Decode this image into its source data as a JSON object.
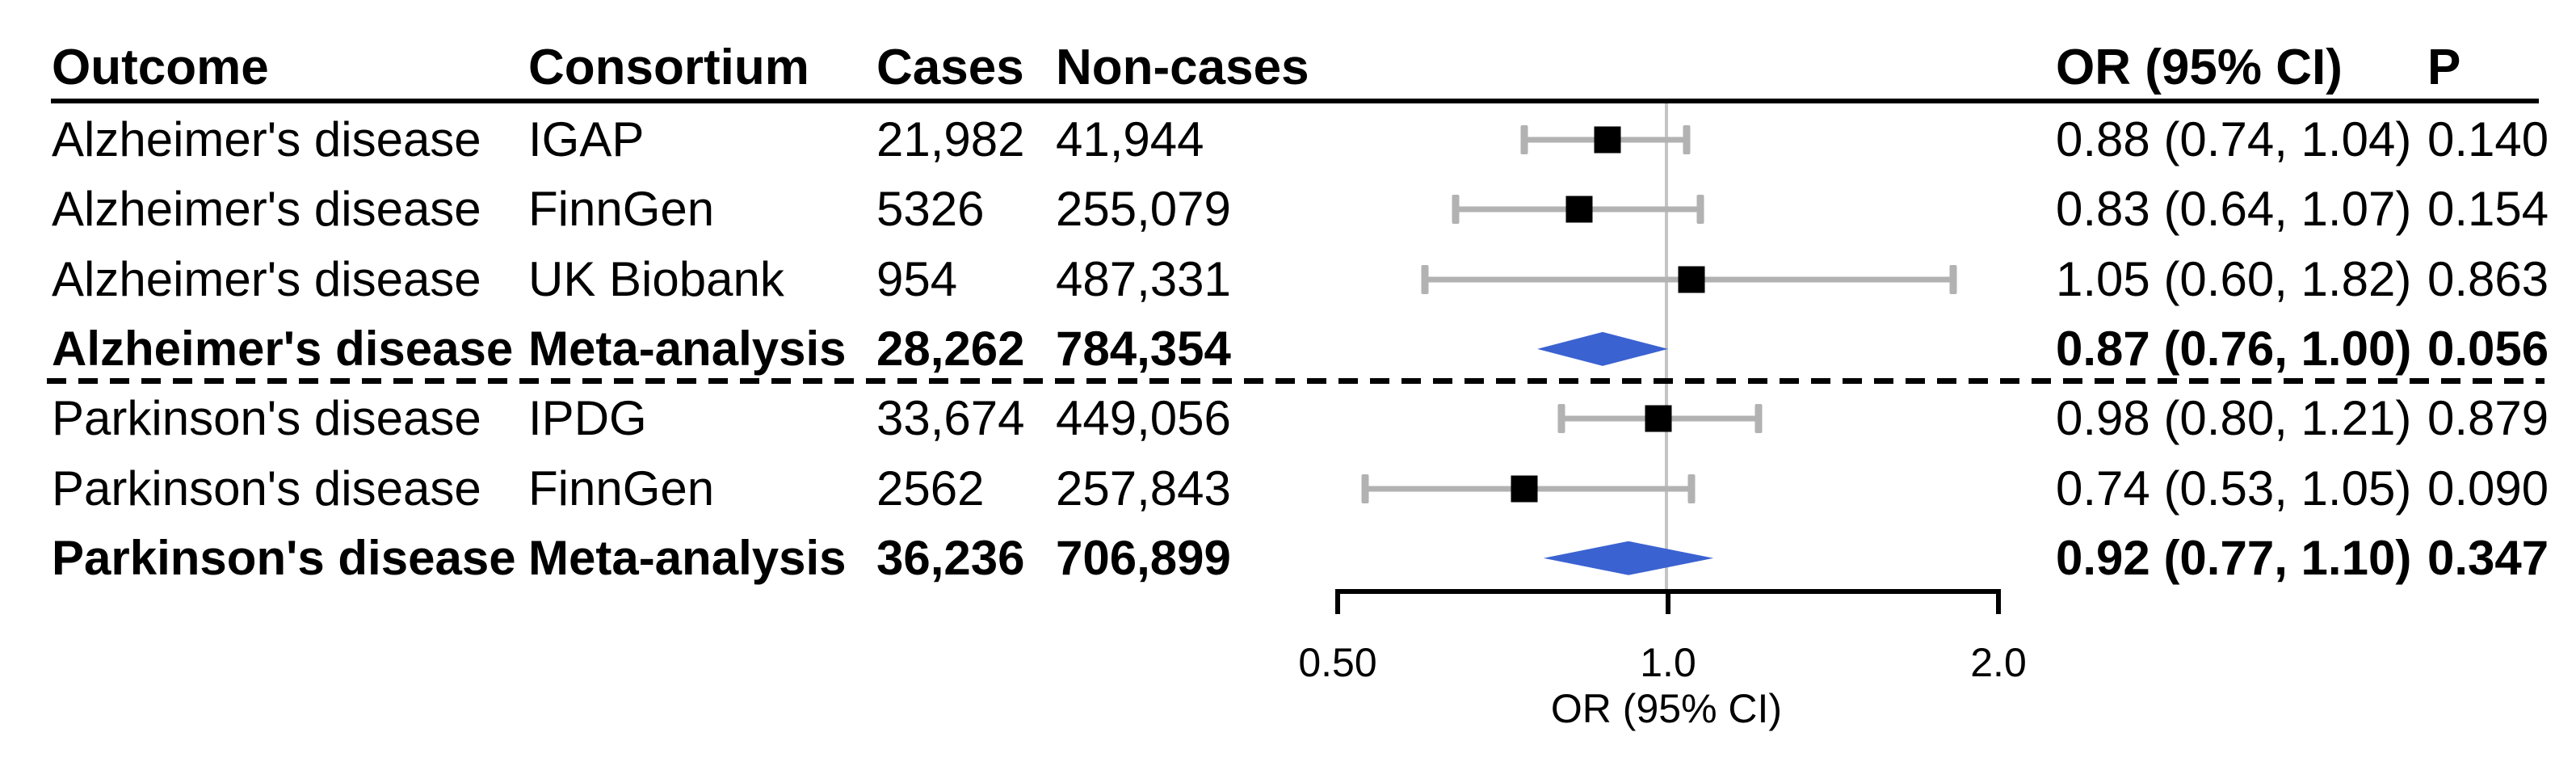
{
  "chart_data": {
    "type": "forest",
    "columns": {
      "outcome": "Outcome",
      "consortium": "Consortium",
      "cases": "Cases",
      "noncases": "Non-cases",
      "or_ci": "OR (95% CI)",
      "p": "P"
    },
    "xlabel": "OR (95% CI)",
    "x_axis": {
      "scale": "log",
      "range": [
        0.5,
        2.0
      ],
      "reference_line": 1.0,
      "ticks": [
        {
          "value": 0.5,
          "label": "0.50"
        },
        {
          "value": 1.0,
          "label": "1.0"
        },
        {
          "value": 2.0,
          "label": "2.0"
        }
      ]
    },
    "divider_after_row": 3,
    "rows": [
      {
        "outcome": "Alzheimer's disease",
        "consortium": "IGAP",
        "cases": "21,982",
        "noncases": "41,944",
        "or": 0.88,
        "ci_low": 0.74,
        "ci_high": 1.04,
        "or_ci": "0.88 (0.74, 1.04)",
        "p": "0.140",
        "style": "study"
      },
      {
        "outcome": "Alzheimer's disease",
        "consortium": "FinnGen",
        "cases": "5326",
        "noncases": "255,079",
        "or": 0.83,
        "ci_low": 0.64,
        "ci_high": 1.07,
        "or_ci": "0.83 (0.64, 1.07)",
        "p": "0.154",
        "style": "study"
      },
      {
        "outcome": "Alzheimer's disease",
        "consortium": "UK Biobank",
        "cases": "954",
        "noncases": "487,331",
        "or": 1.05,
        "ci_low": 0.6,
        "ci_high": 1.82,
        "or_ci": "1.05 (0.60, 1.82)",
        "p": "0.863",
        "style": "study"
      },
      {
        "outcome": "Alzheimer's disease",
        "consortium": "Meta-analysis",
        "cases": "28,262",
        "noncases": "784,354",
        "or": 0.87,
        "ci_low": 0.76,
        "ci_high": 1.0,
        "or_ci": "0.87 (0.76, 1.00)",
        "p": "0.056",
        "style": "meta"
      },
      {
        "outcome": "Parkinson's disease",
        "consortium": "IPDG",
        "cases": "33,674",
        "noncases": "449,056",
        "or": 0.98,
        "ci_low": 0.8,
        "ci_high": 1.21,
        "or_ci": "0.98 (0.80, 1.21)",
        "p": "0.879",
        "style": "study"
      },
      {
        "outcome": "Parkinson's disease",
        "consortium": "FinnGen",
        "cases": "2562",
        "noncases": "257,843",
        "or": 0.74,
        "ci_low": 0.53,
        "ci_high": 1.05,
        "or_ci": "0.74 (0.53, 1.05)",
        "p": "0.090",
        "style": "study"
      },
      {
        "outcome": "Parkinson's disease",
        "consortium": "Meta-analysis",
        "cases": "36,236",
        "noncases": "706,899",
        "or": 0.92,
        "ci_low": 0.77,
        "ci_high": 1.1,
        "or_ci": "0.92 (0.77, 1.10)",
        "p": "0.347",
        "style": "meta"
      }
    ]
  },
  "colors": {
    "text": "#000000",
    "square": "#000000",
    "ci_bar": "#b2b2b2",
    "reference_line": "#c4c4c4",
    "diamond": "#3b62d1",
    "rule": "#000000",
    "background": "#ffffff"
  }
}
